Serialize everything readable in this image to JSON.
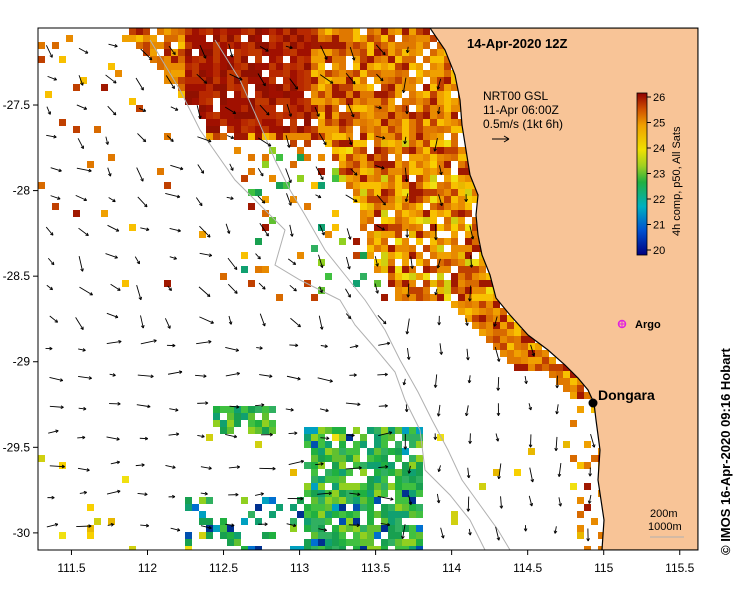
{
  "title": "14-Apr-2020 12Z",
  "current_info": {
    "line1": "NRT00 GSL",
    "line2": "11-Apr 06:00Z",
    "line3": "0.5m/s (1kt 6h)"
  },
  "colorbar": {
    "label": "4h comp, p50, All Sats",
    "ticks": [
      "26",
      "25",
      "24",
      "23",
      "22",
      "21",
      "20"
    ],
    "range": [
      20,
      26
    ]
  },
  "places": {
    "dongara": "Dongara",
    "argo": "Argo"
  },
  "depth_legend": {
    "c1": "200m",
    "c2": "1000m"
  },
  "credit": "© IMOS 16-Apr-2020 09:16 Hobart",
  "axes": {
    "x_ticks": [
      "111.5",
      "112",
      "112.5",
      "113",
      "113.5",
      "114",
      "114.5",
      "115",
      "115.5"
    ],
    "y_ticks": [
      "-27.5",
      "-28",
      "-28.5",
      "-29",
      "-29.5",
      "-30"
    ],
    "xlim": [
      111.28,
      115.62
    ],
    "ylim": [
      -30.1,
      -27.05
    ]
  },
  "colors": {
    "land": "#f8c497",
    "coast": "#000000",
    "isobath": "#b0b0b0",
    "argo": "#e020e0"
  }
}
